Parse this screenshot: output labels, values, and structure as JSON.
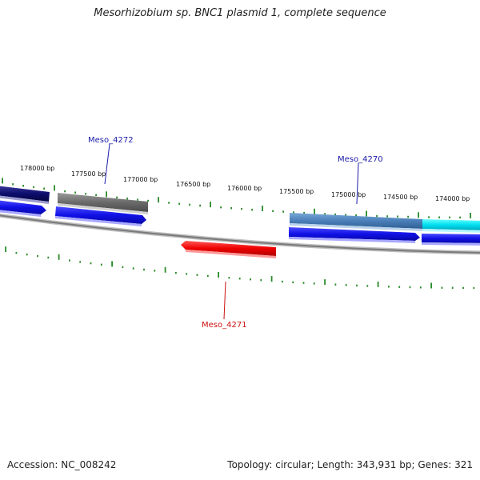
{
  "title": "Mesorhizobium sp. BNC1 plasmid 1, complete sequence",
  "footer": {
    "accession": "Accession: NC_008242",
    "summary": "Topology: circular; Length: 343,931 bp; Genes: 321"
  },
  "colors": {
    "tick": "#2a8a2a",
    "backbone": "#8a8a8a",
    "label_forward": "#1a1aa8",
    "label_reverse": "#cc1111"
  },
  "scale_labels": [
    {
      "id": "bp-178000",
      "text": "178000 bp"
    },
    {
      "id": "bp-177500",
      "text": "177500 bp"
    },
    {
      "id": "bp-177000",
      "text": "177000 bp"
    },
    {
      "id": "bp-176500",
      "text": "176500 bp"
    },
    {
      "id": "bp-176000",
      "text": "176000 bp"
    },
    {
      "id": "bp-175500",
      "text": "175500 bp"
    },
    {
      "id": "bp-175000",
      "text": "175000 bp"
    },
    {
      "id": "bp-174500",
      "text": "174500 bp"
    },
    {
      "id": "bp-174000",
      "text": "174000 bp"
    }
  ],
  "gene_labels": [
    {
      "id": "meso-4272",
      "text": "Meso_4272",
      "color": "#1a1aa8"
    },
    {
      "id": "meso-4270",
      "text": "Meso_4270",
      "color": "#1a1aa8"
    },
    {
      "id": "meso-4271",
      "text": "Meso_4271",
      "color": "#cc1111"
    }
  ]
}
